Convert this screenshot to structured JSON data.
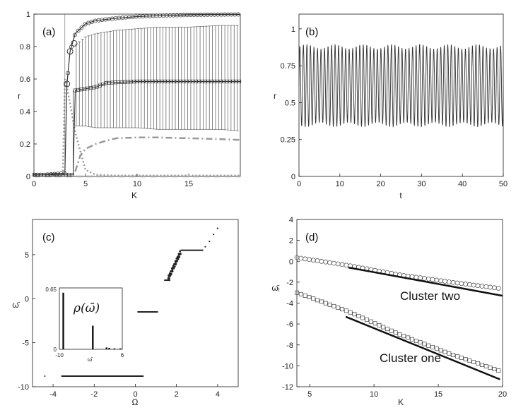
{
  "panels": {
    "a": {
      "tag": "(a)",
      "xlabel": "K",
      "ylabel": "r",
      "xticks": [
        "0",
        "5",
        "10",
        "15"
      ],
      "yticks": [
        "0",
        "0.2",
        "0.4",
        "0.6",
        "0.8",
        "1"
      ]
    },
    "b": {
      "tag": "(b)",
      "xlabel": "t",
      "ylabel": "r",
      "xticks": [
        "0",
        "10",
        "20",
        "30",
        "40",
        "50"
      ],
      "yticks": [
        "0",
        "0.25",
        "0.5",
        "0.75",
        "1"
      ]
    },
    "c": {
      "tag": "(c)",
      "xlabel": "Ω",
      "ylabel": "ω̄",
      "xticks": [
        "-4",
        "-2",
        "0",
        "2",
        "4"
      ],
      "yticks": [
        "-10",
        "-5",
        "0",
        "5"
      ],
      "inset": {
        "rho_label": "ρ(ω̄)",
        "ytop": "0.65",
        "ybottom": "0",
        "xleft": "-10",
        "xright": "6",
        "xlabel": "ω̄"
      }
    },
    "d": {
      "tag": "(d)",
      "xlabel": "K",
      "ylabel": "ω̄ᵢ",
      "xticks": [
        "5",
        "10",
        "15",
        "20"
      ],
      "yticks": [
        "-12",
        "-10",
        "-8",
        "-6",
        "-4",
        "-2",
        "0",
        "2",
        "4"
      ],
      "annot_two": "Cluster two",
      "annot_one": "Cluster one"
    }
  },
  "chart_data": [
    {
      "panel": "a",
      "type": "line",
      "xlim": [
        0,
        20
      ],
      "ylim": [
        0,
        1
      ],
      "series": [
        {
          "style": "circles, dark",
          "x": [
            0,
            1,
            2,
            3,
            3.2,
            3.5,
            4,
            5,
            6,
            8,
            10,
            12,
            15,
            18,
            20
          ],
          "y": [
            0.01,
            0.01,
            0.015,
            0.02,
            0.57,
            0.77,
            0.88,
            0.94,
            0.96,
            0.975,
            0.985,
            0.99,
            0.995,
            0.997,
            0.998
          ]
        },
        {
          "style": "squares with error bars",
          "x": [
            0,
            1,
            2,
            3,
            3.8,
            4,
            5,
            6,
            7,
            8,
            10,
            12,
            15,
            18,
            20
          ],
          "y": [
            0.01,
            0.01,
            0.01,
            0.01,
            0.01,
            0.53,
            0.54,
            0.55,
            0.575,
            0.58,
            0.585,
            0.585,
            0.585,
            0.585,
            0.585
          ],
          "err_low": [
            0.31,
            0.31,
            0.3,
            0.3,
            0.3,
            0.3,
            0.29,
            0.29,
            0.29,
            0.29,
            0.28
          ],
          "err_high": [
            0.81,
            0.85,
            0.88,
            0.9,
            0.9,
            0.91,
            0.92,
            0.92,
            0.92,
            0.93,
            0.93
          ]
        },
        {
          "style": "dotted gray, decaying",
          "x": [
            2.8,
            3,
            3.2,
            3.5,
            4,
            5,
            6,
            8,
            20
          ],
          "y": [
            0.01,
            0.6,
            0.55,
            0.45,
            0.27,
            0.04,
            0.01,
            0.005,
            0.005
          ]
        },
        {
          "style": "dash-dot gray",
          "x": [
            4,
            4.5,
            5,
            6,
            7,
            8,
            10,
            12,
            15,
            18,
            20
          ],
          "y": [
            0.03,
            0.13,
            0.17,
            0.2,
            0.22,
            0.235,
            0.24,
            0.24,
            0.235,
            0.23,
            0.225
          ]
        },
        {
          "style": "dashed gray",
          "x": [
            0,
            20
          ],
          "y": [
            0.0,
            0.0
          ]
        }
      ]
    },
    {
      "panel": "b",
      "type": "line",
      "xlim": [
        0,
        50
      ],
      "ylim": [
        0,
        1.1
      ],
      "oscillation": {
        "min": 0.35,
        "max": 0.88,
        "cycles": 58
      }
    },
    {
      "panel": "c",
      "type": "scatter",
      "xlim": [
        -5,
        5
      ],
      "ylim": [
        -10,
        9
      ],
      "plateaus": [
        {
          "x": [
            -4.4,
            -4.4
          ],
          "y": -8.8
        },
        {
          "x": [
            -3.6,
            0.4
          ],
          "y": -8.8
        },
        {
          "x": [
            0.1,
            1.1
          ],
          "y": -1.5
        },
        {
          "x": [
            1.4,
            1.7
          ],
          "y": 2.1
        },
        {
          "x": [
            2.2,
            3.3
          ],
          "y": 5.5
        }
      ],
      "ramp": {
        "x": [
          1.6,
          2.2
        ],
        "y": [
          2.3,
          5.3
        ]
      },
      "scatter_right": {
        "x": [
          3.4,
          3.6,
          3.8,
          4.0
        ],
        "y": [
          5.9,
          6.5,
          7.3,
          8.0
        ]
      },
      "inset_data": {
        "type": "bar",
        "xlim": [
          -10,
          6
        ],
        "ylim": [
          0,
          0.65
        ],
        "x": [
          -9,
          -1.5,
          2,
          2.7,
          4,
          5.5
        ],
        "y": [
          0.6,
          0.25,
          0.02,
          0.015,
          0.01,
          0.01
        ]
      }
    },
    {
      "panel": "d",
      "type": "scatter",
      "xlim": [
        4,
        20
      ],
      "ylim": [
        -12,
        4
      ],
      "series": [
        {
          "style": "circles",
          "x": [
            4,
            8,
            12,
            16,
            19.8
          ],
          "y": [
            0.35,
            -0.4,
            -1.3,
            -2.0,
            -2.6
          ]
        },
        {
          "style": "squares",
          "x": [
            4,
            8,
            12,
            16,
            19.8
          ],
          "y": [
            -3.0,
            -4.8,
            -7.0,
            -8.9,
            -10.5
          ]
        },
        {
          "style": "fit line two",
          "x": [
            8,
            20
          ],
          "y": [
            -0.6,
            -3.3
          ]
        },
        {
          "style": "fit line one",
          "x": [
            7.8,
            19.8
          ],
          "y": [
            -5.3,
            -11.3
          ]
        }
      ]
    }
  ]
}
